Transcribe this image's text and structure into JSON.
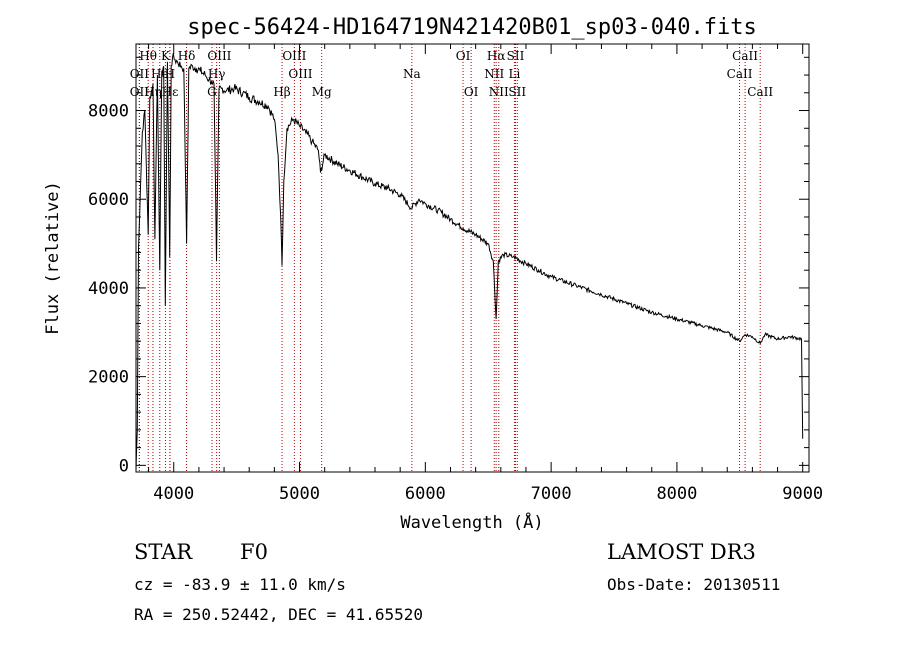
{
  "chart_data": {
    "type": "line",
    "title": "spec-56424-HD164719N421420B01_sp03-040.fits",
    "xlabel": "Wavelength (Å)",
    "ylabel": "Flux (relative)",
    "xlim": [
      3700,
      9050
    ],
    "ylim": [
      -150,
      9500
    ],
    "xticks": [
      4000,
      5000,
      6000,
      7000,
      8000,
      9000
    ],
    "xtick_labels": [
      "4000",
      "5000",
      "6000",
      "7000",
      "8000",
      "9000"
    ],
    "yticks": [
      0,
      2000,
      4000,
      6000,
      8000
    ],
    "ytick_labels": [
      "0",
      "2000",
      "4000",
      "6000",
      "8000"
    ],
    "series": [
      {
        "name": "spectrum",
        "x": [
          3700,
          3710,
          3720,
          3735,
          3750,
          3770,
          3797,
          3810,
          3835,
          3850,
          3870,
          3889,
          3905,
          3920,
          3933,
          3950,
          3968,
          3980,
          3990,
          4010,
          4030,
          4060,
          4080,
          4102,
          4120,
          4150,
          4180,
          4210,
          4250,
          4280,
          4300,
          4320,
          4340,
          4360,
          4380,
          4420,
          4480,
          4550,
          4600,
          4680,
          4750,
          4800,
          4830,
          4850,
          4861,
          4875,
          4900,
          4950,
          5000,
          5050,
          5100,
          5150,
          5167,
          5200,
          5300,
          5400,
          5500,
          5600,
          5700,
          5800,
          5890,
          5950,
          6000,
          6100,
          6200,
          6300,
          6400,
          6500,
          6540,
          6563,
          6580,
          6620,
          6700,
          6800,
          6900,
          7000,
          7200,
          7400,
          7600,
          7800,
          8000,
          8200,
          8400,
          8498,
          8542,
          8600,
          8662,
          8700,
          8800,
          8900,
          8990,
          9000
        ],
        "y": [
          -100,
          800,
          4900,
          6200,
          7500,
          8000,
          5200,
          8300,
          8600,
          5100,
          8800,
          4400,
          8900,
          9000,
          3600,
          9100,
          4700,
          9000,
          9200,
          9150,
          9100,
          9000,
          8950,
          5000,
          8950,
          9000,
          8950,
          8900,
          8800,
          8700,
          8650,
          8600,
          4600,
          8500,
          8500,
          8450,
          8500,
          8400,
          8300,
          8200,
          8100,
          7800,
          7000,
          5600,
          4500,
          6400,
          7600,
          7800,
          7650,
          7500,
          7300,
          7100,
          6600,
          7000,
          6800,
          6650,
          6500,
          6350,
          6250,
          6100,
          5800,
          6000,
          5900,
          5750,
          5550,
          5350,
          5200,
          5000,
          4600,
          3300,
          4600,
          4750,
          4700,
          4550,
          4400,
          4250,
          4050,
          3850,
          3650,
          3450,
          3300,
          3150,
          3000,
          2800,
          2950,
          2900,
          2750,
          2950,
          2850,
          2900,
          2850,
          600
        ]
      }
    ],
    "lines": [
      {
        "label": "Hθ",
        "x": 3797,
        "row": 0
      },
      {
        "label": "OII",
        "x": 3727,
        "row": 1
      },
      {
        "label": "OII",
        "x": 3727,
        "row": 2
      },
      {
        "label": "Hη",
        "x": 3835,
        "row": 2
      },
      {
        "label": "He",
        "x": 3889,
        "row": 1
      },
      {
        "label": "Hε",
        "x": 3970,
        "row": 2
      },
      {
        "label": "K",
        "x": 3934,
        "row": 0
      },
      {
        "label": "H",
        "x": 3969,
        "row": 1
      },
      {
        "label": "Hδ",
        "x": 4102,
        "row": 0
      },
      {
        "label": "G",
        "x": 4304,
        "row": 2
      },
      {
        "label": "OIII",
        "x": 4363,
        "row": 0
      },
      {
        "label": "Hγ",
        "x": 4341,
        "row": 1
      },
      {
        "label": "Hβ",
        "x": 4861,
        "row": 2
      },
      {
        "label": "OIII",
        "x": 4959,
        "row": 0
      },
      {
        "label": "OIII",
        "x": 5007,
        "row": 1
      },
      {
        "label": "Mg",
        "x": 5176,
        "row": 2
      },
      {
        "label": "Na",
        "x": 5893,
        "row": 1
      },
      {
        "label": "OI",
        "x": 6300,
        "row": 0
      },
      {
        "label": "OI",
        "x": 6364,
        "row": 2
      },
      {
        "label": "Hα",
        "x": 6563,
        "row": 0
      },
      {
        "label": "NII",
        "x": 6548,
        "row": 1
      },
      {
        "label": "NII",
        "x": 6584,
        "row": 2
      },
      {
        "label": "SII",
        "x": 6717,
        "row": 0
      },
      {
        "label": "Li",
        "x": 6708,
        "row": 1
      },
      {
        "label": "SII",
        "x": 6731,
        "row": 2
      },
      {
        "label": "CaII",
        "x": 8542,
        "row": 0
      },
      {
        "label": "CaII",
        "x": 8498,
        "row": 1
      },
      {
        "label": "CaII",
        "x": 8662,
        "row": 2
      }
    ]
  },
  "colors": {
    "line_marker": "#b00000",
    "spectrum": "#000000",
    "axes": "#000000"
  },
  "footer": {
    "object_class": "STAR",
    "subclass": "F0",
    "survey": "LAMOST DR3",
    "cz": "cz = -83.9 ± 11.0 km/s",
    "obs_date": "Obs-Date: 20130511",
    "coords": "RA = 250.52442, DEC =  41.65520"
  }
}
